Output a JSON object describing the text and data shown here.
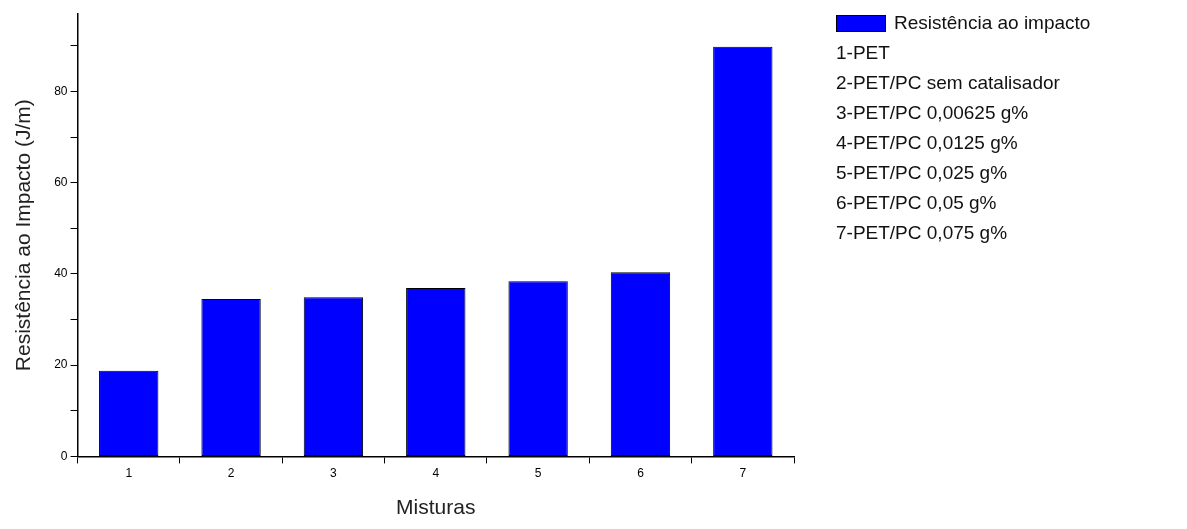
{
  "chart_data": {
    "type": "bar",
    "xlabel": "Misturas",
    "ylabel": "Resistência ao Impacto (J/m)",
    "categories": [
      "1",
      "2",
      "3",
      "4",
      "5",
      "6",
      "7"
    ],
    "series": [
      {
        "name": "Resistência ao impacto",
        "color": "#0000ff",
        "values": [
          18.8,
          34.5,
          34.9,
          36.9,
          38.4,
          40.4,
          89.8
        ]
      }
    ],
    "ylim": [
      0,
      97
    ],
    "yticks": [
      0,
      {
        "value": 10,
        "label": null
      },
      20,
      {
        "value": 30,
        "label": null
      },
      40,
      {
        "value": 50,
        "label": null
      },
      60,
      {
        "value": 70,
        "label": null
      },
      80,
      {
        "value": 90,
        "label": null
      }
    ],
    "grid": false,
    "legend": "top right",
    "annotations": [
      "1-PET",
      "2-PET/PC sem catalisador",
      "3-PET/PC 0,00625 g%",
      "4-PET/PC 0,0125 g%",
      "5-PET/PC 0,025 g%",
      "6-PET/PC 0,05 g%",
      "7-PET/PC 0,075 g%"
    ]
  }
}
